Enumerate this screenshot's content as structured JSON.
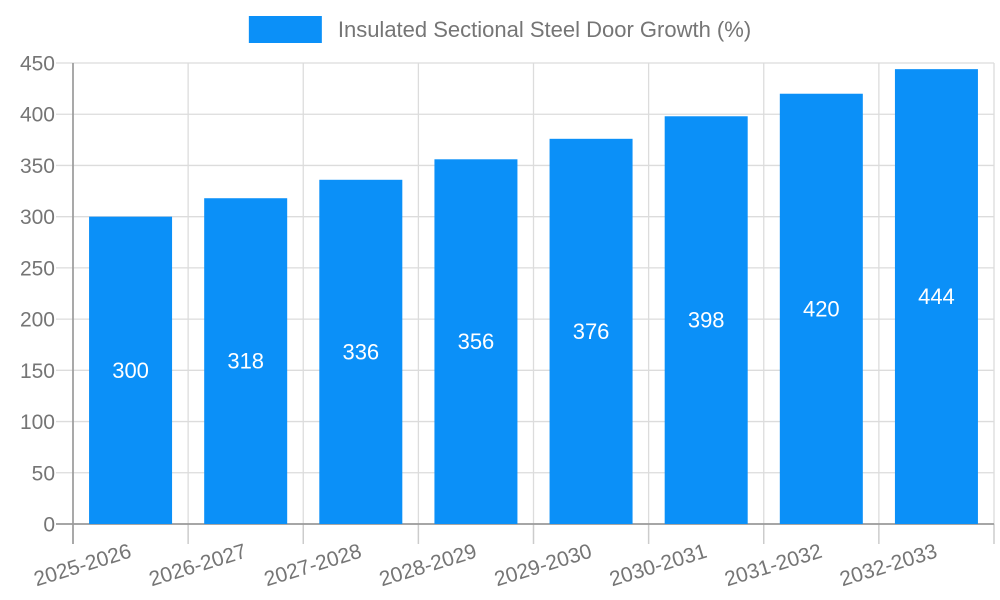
{
  "chart_data": {
    "type": "bar",
    "title": "Insulated Sectional Steel Door Growth (%)",
    "legend_entries": [
      "Insulated Sectional Steel Door Growth (%)"
    ],
    "legend_position": "top",
    "categories": [
      "2025-2026",
      "2026-2027",
      "2027-2028",
      "2028-2029",
      "2029-2030",
      "2030-2031",
      "2031-2032",
      "2032-2033"
    ],
    "series": [
      {
        "name": "Insulated Sectional Steel Door Growth (%)",
        "values": [
          300,
          318,
          336,
          356,
          376,
          398,
          420,
          444
        ]
      }
    ],
    "bar_labels": [
      "300",
      "318",
      "336",
      "356",
      "376",
      "398",
      "420",
      "444"
    ],
    "xlabel": "",
    "ylabel": "",
    "ylim": [
      0,
      450
    ],
    "ytick_step": 50,
    "ytick_labels": [
      "0",
      "50",
      "100",
      "150",
      "200",
      "250",
      "300",
      "350",
      "400",
      "450"
    ],
    "grid": true,
    "x_label_rotation_deg": -17,
    "bar_label_position": "center",
    "colors": {
      "bar": "#0b90f8",
      "bar_label": "#ffffff",
      "grid_line": "#dcdcdc",
      "tick_line": "#cccccc",
      "axis_line": "#9a9a9a",
      "tick_label": "#757575",
      "legend_text": "#757575",
      "background": "#ffffff"
    }
  }
}
